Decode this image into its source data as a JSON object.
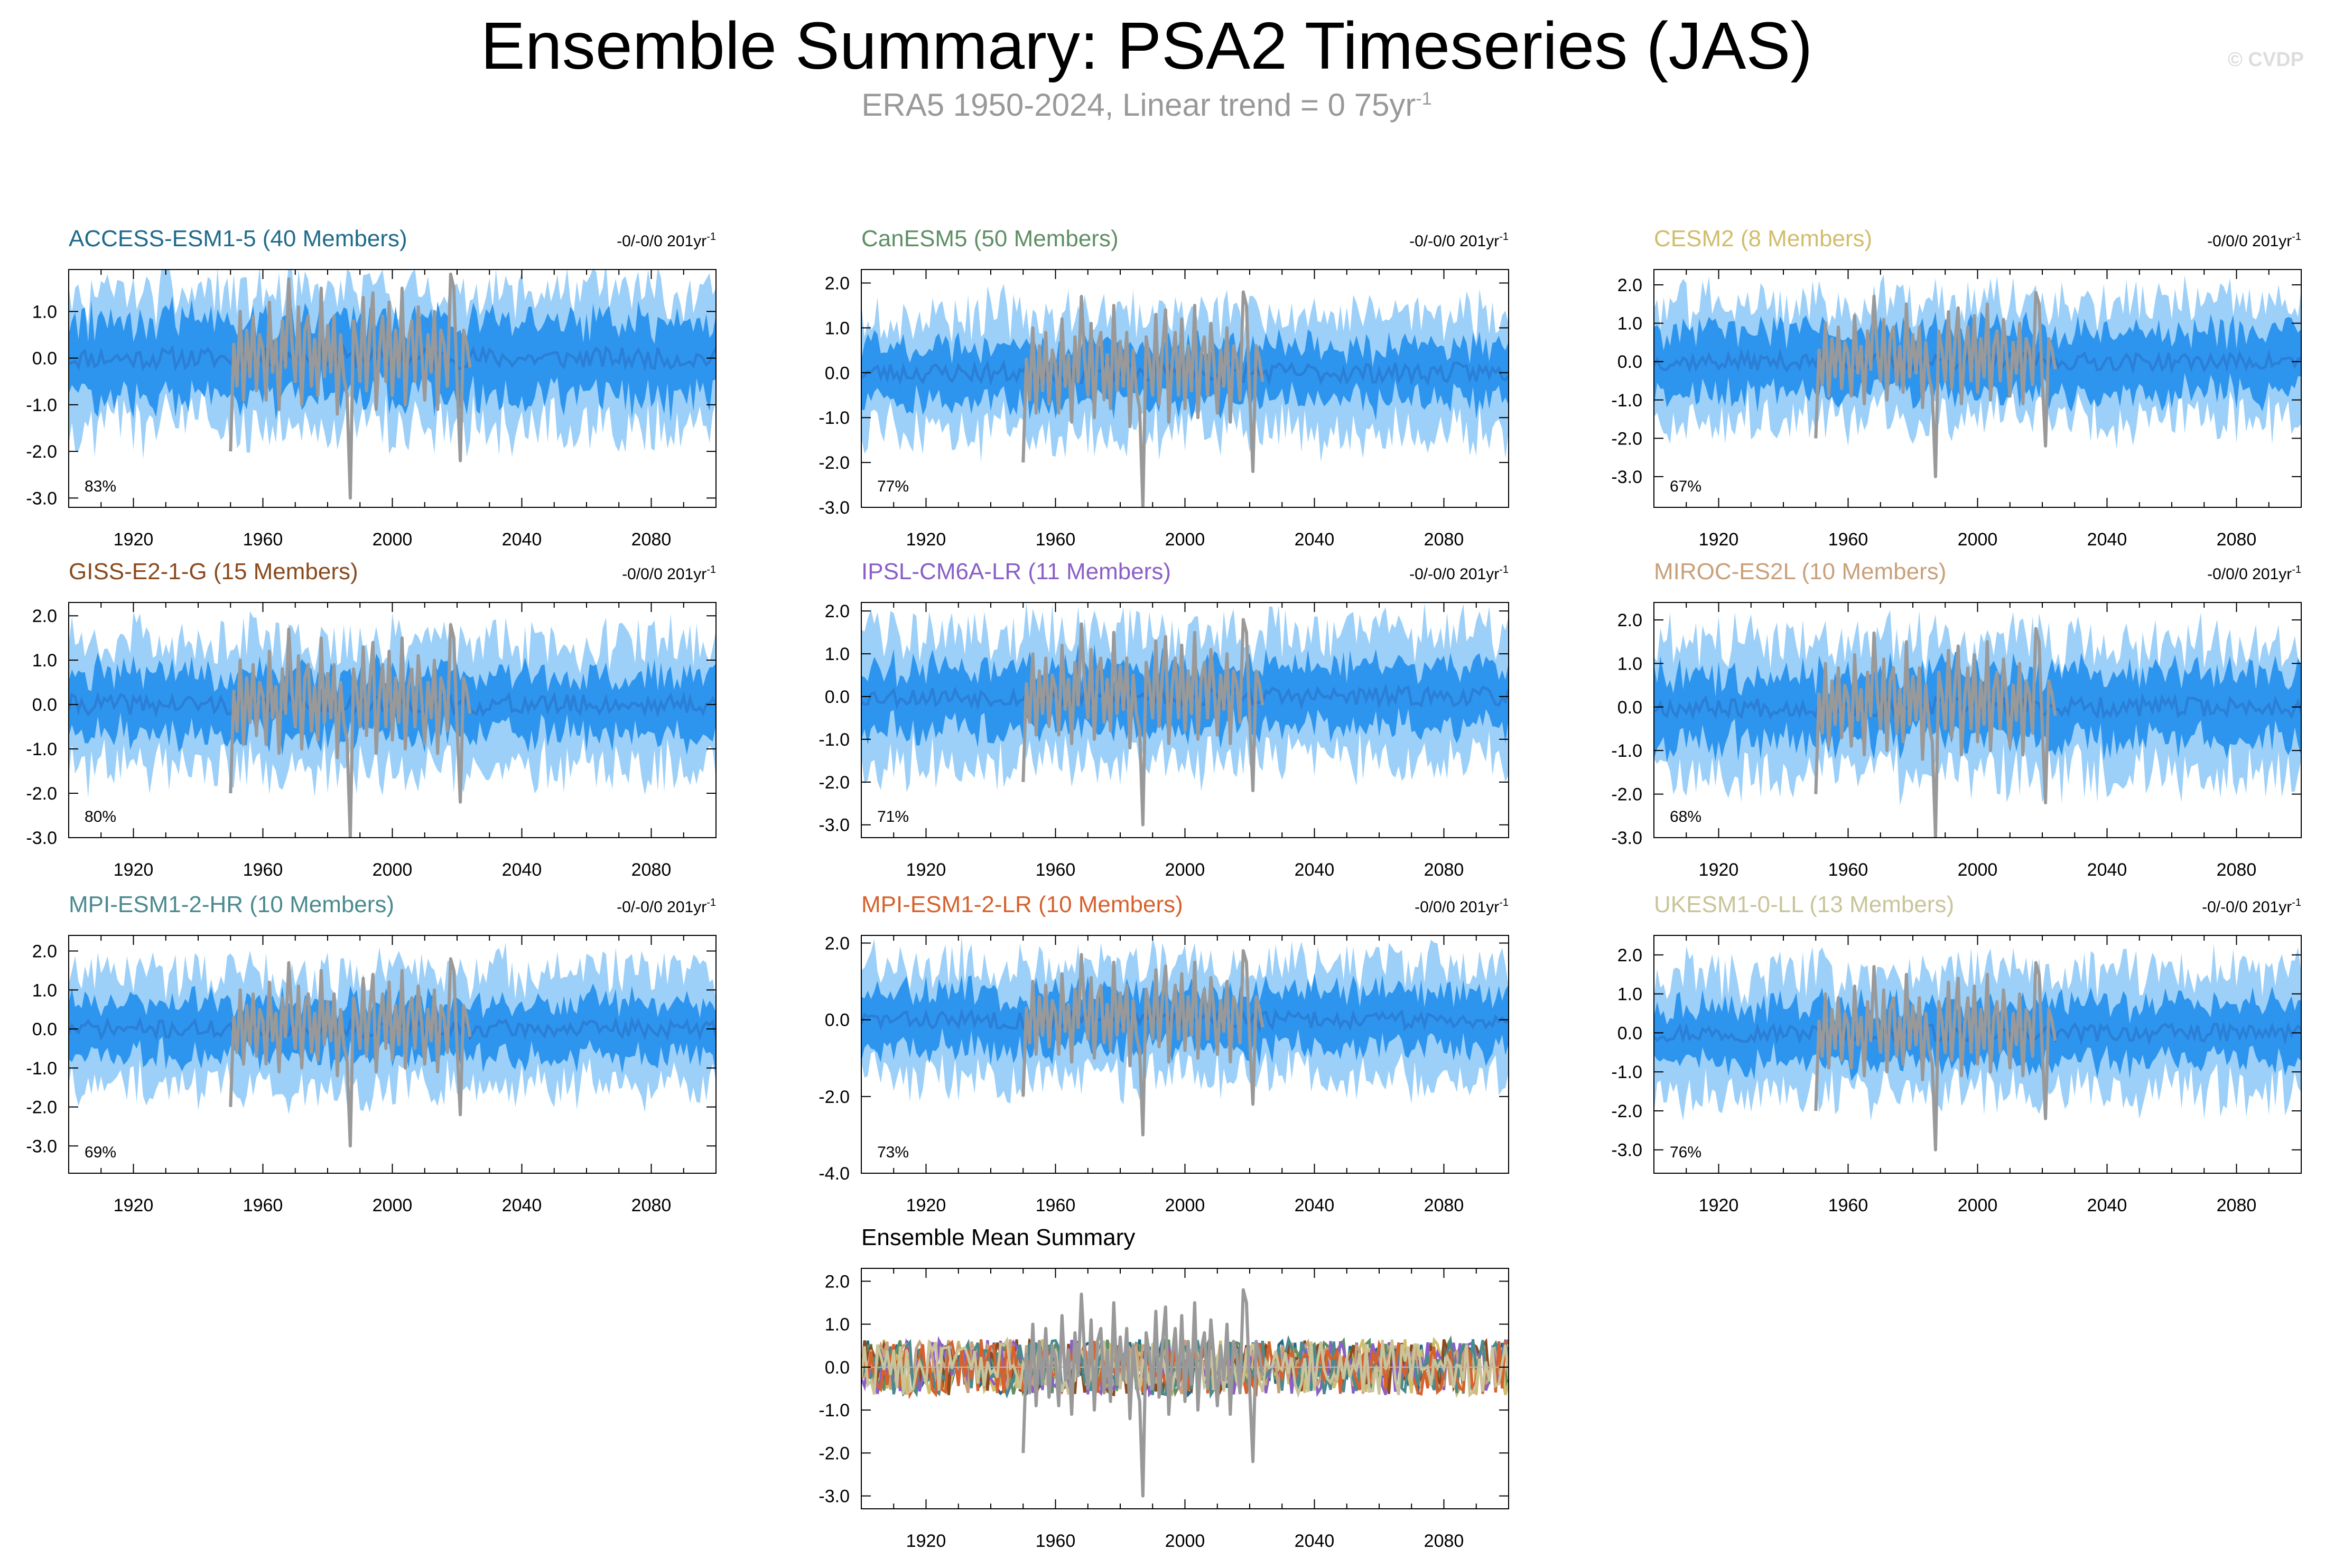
{
  "page": {
    "title": "Ensemble Summary: PSA2 Timeseries (JAS)",
    "subtitle_text": "ERA5 1950-2024, Linear trend = 0 75yr",
    "subtitle_sup": "-1",
    "credit": "© CVDP"
  },
  "colors": {
    "outer_band": "#9dd0f8",
    "inner_band": "#2e95ee",
    "mean_line": "#2b7fd6",
    "observation": "#999999"
  },
  "chart_data": [
    {
      "id": "access",
      "type": "area",
      "title": "ACCESS-ESM1-5 (40 Members)",
      "title_color": "#1f6b8c",
      "trend": "-0/-0/0 201yr",
      "trend_sup": "-1",
      "percent": "83%",
      "ylim": [
        -3.2,
        1.9
      ],
      "yticks": [
        1.0,
        0.0,
        -1.0,
        -2.0,
        -3.0
      ],
      "ytick_labels": [
        "1.0",
        "0.0",
        "-1.0",
        "-2.0",
        "-3.0"
      ],
      "xlim": [
        1900,
        2100
      ],
      "xticks": [
        1920,
        1960,
        2000,
        2040,
        2080
      ],
      "xtick_labels": [
        "1920",
        "1960",
        "2000",
        "2040",
        "2080"
      ],
      "inner_band": 1.0,
      "outer_band": 1.45,
      "seed": 11
    },
    {
      "id": "canesm",
      "type": "area",
      "title": "CanESM5 (50 Members)",
      "title_color": "#5f8f64",
      "trend": "-0/-0/0 201yr",
      "trend_sup": "-1",
      "percent": "77%",
      "ylim": [
        -3.0,
        2.3
      ],
      "yticks": [
        2.0,
        1.0,
        0.0,
        -1.0,
        -2.0,
        -3.0
      ],
      "ytick_labels": [
        "2.0",
        "1.0",
        "0.0",
        "-1.0",
        "-2.0",
        "-3.0"
      ],
      "xlim": [
        1900,
        2100
      ],
      "xticks": [
        1920,
        1960,
        2000,
        2040,
        2080
      ],
      "xtick_labels": [
        "1920",
        "1960",
        "2000",
        "2040",
        "2080"
      ],
      "inner_band": 0.75,
      "outer_band": 1.35,
      "seed": 23
    },
    {
      "id": "cesm",
      "type": "area",
      "title": "CESM2 (8 Members)",
      "title_color": "#d1bd6c",
      "trend": "-0/0/0 201yr",
      "trend_sup": "-1",
      "percent": "67%",
      "ylim": [
        -3.8,
        2.4
      ],
      "yticks": [
        2.0,
        1.0,
        0.0,
        -1.0,
        -2.0,
        -3.0
      ],
      "ytick_labels": [
        "2.0",
        "1.0",
        "0.0",
        "-1.0",
        "-2.0",
        "-3.0"
      ],
      "xlim": [
        1900,
        2100
      ],
      "xticks": [
        1920,
        1960,
        2000,
        2040,
        2080
      ],
      "xtick_labels": [
        "1920",
        "1960",
        "2000",
        "2040",
        "2080"
      ],
      "inner_band": 1.0,
      "outer_band": 1.55,
      "seed": 37
    },
    {
      "id": "giss",
      "type": "area",
      "title": "GISS-E2-1-G (15 Members)",
      "title_color": "#8a4a1e",
      "trend": "-0/0/0 201yr",
      "trend_sup": "-1",
      "percent": "80%",
      "ylim": [
        -3.0,
        2.3
      ],
      "yticks": [
        2.0,
        1.0,
        0.0,
        -1.0,
        -2.0,
        -3.0
      ],
      "ytick_labels": [
        "2.0",
        "1.0",
        "0.0",
        "-1.0",
        "-2.0",
        "-3.0"
      ],
      "xlim": [
        1900,
        2100
      ],
      "xticks": [
        1920,
        1960,
        2000,
        2040,
        2080
      ],
      "xtick_labels": [
        "1920",
        "1960",
        "2000",
        "2040",
        "2080"
      ],
      "inner_band": 0.85,
      "outer_band": 1.45,
      "seed": 41
    },
    {
      "id": "ipsl",
      "type": "area",
      "title": "IPSL-CM6A-LR (11 Members)",
      "title_color": "#8a5fc7",
      "trend": "-0/-0/0 201yr",
      "trend_sup": "-1",
      "percent": "71%",
      "ylim": [
        -3.3,
        2.2
      ],
      "yticks": [
        2.0,
        1.0,
        0.0,
        -1.0,
        -2.0,
        -3.0
      ],
      "ytick_labels": [
        "2.0",
        "1.0",
        "0.0",
        "-1.0",
        "-2.0",
        "-3.0"
      ],
      "xlim": [
        1900,
        2100
      ],
      "xticks": [
        1920,
        1960,
        2000,
        2040,
        2080
      ],
      "xtick_labels": [
        "1920",
        "1960",
        "2000",
        "2040",
        "2080"
      ],
      "inner_band": 0.9,
      "outer_band": 1.55,
      "seed": 53
    },
    {
      "id": "miroc",
      "type": "area",
      "title": "MIROC-ES2L (10 Members)",
      "title_color": "#c9a07a",
      "trend": "-0/0/0 201yr",
      "trend_sup": "-1",
      "percent": "68%",
      "ylim": [
        -3.0,
        2.4
      ],
      "yticks": [
        2.0,
        1.0,
        0.0,
        -1.0,
        -2.0,
        -3.0
      ],
      "ytick_labels": [
        "2.0",
        "1.0",
        "0.0",
        "-1.0",
        "-2.0",
        "-3.0"
      ],
      "xlim": [
        1900,
        2100
      ],
      "xticks": [
        1920,
        1960,
        2000,
        2040,
        2080
      ],
      "xtick_labels": [
        "1920",
        "1960",
        "2000",
        "2040",
        "2080"
      ],
      "inner_band": 0.95,
      "outer_band": 1.55,
      "seed": 67
    },
    {
      "id": "mpihr",
      "type": "area",
      "title": "MPI-ESM1-2-HR (10 Members)",
      "title_color": "#4a8a8f",
      "trend": "-0/-0/0 201yr",
      "trend_sup": "-1",
      "percent": "69%",
      "ylim": [
        -3.7,
        2.4
      ],
      "yticks": [
        2.0,
        1.0,
        0.0,
        -1.0,
        -2.0,
        -3.0
      ],
      "ytick_labels": [
        "2.0",
        "1.0",
        "0.0",
        "-1.0",
        "-2.0",
        "-3.0"
      ],
      "xlim": [
        1900,
        2100
      ],
      "xticks": [
        1920,
        1960,
        2000,
        2040,
        2080
      ],
      "xtick_labels": [
        "1920",
        "1960",
        "2000",
        "2040",
        "2080"
      ],
      "inner_band": 0.85,
      "outer_band": 1.5,
      "seed": 71
    },
    {
      "id": "mpilr",
      "type": "area",
      "title": "MPI-ESM1-2-LR (10 Members)",
      "title_color": "#d6612d",
      "trend": "-0/0/0 201yr",
      "trend_sup": "-1",
      "percent": "73%",
      "ylim": [
        -4.0,
        2.2
      ],
      "yticks": [
        2.0,
        0.0,
        -2.0,
        -4.0
      ],
      "ytick_labels": [
        "2.0",
        "0.0",
        "-2.0",
        "-4.0"
      ],
      "xlim": [
        1900,
        2100
      ],
      "xticks": [
        1920,
        1960,
        2000,
        2040,
        2080
      ],
      "xtick_labels": [
        "1920",
        "1960",
        "2000",
        "2040",
        "2080"
      ],
      "inner_band": 0.9,
      "outer_band": 1.5,
      "seed": 83
    },
    {
      "id": "ukesm",
      "type": "area",
      "title": "UKESM1-0-LL (13 Members)",
      "title_color": "#c9c49a",
      "trend": "-0/-0/0 201yr",
      "trend_sup": "-1",
      "percent": "76%",
      "ylim": [
        -3.6,
        2.5
      ],
      "yticks": [
        2.0,
        1.0,
        0.0,
        -1.0,
        -2.0,
        -3.0
      ],
      "ytick_labels": [
        "2.0",
        "1.0",
        "0.0",
        "-1.0",
        "-2.0",
        "-3.0"
      ],
      "xlim": [
        1900,
        2100
      ],
      "xticks": [
        1920,
        1960,
        2000,
        2040,
        2080
      ],
      "xtick_labels": [
        "1920",
        "1960",
        "2000",
        "2040",
        "2080"
      ],
      "inner_band": 0.9,
      "outer_band": 1.55,
      "seed": 97
    },
    {
      "id": "ensmean",
      "type": "line",
      "title": "Ensemble Mean Summary",
      "title_color": "#000000",
      "trend": "",
      "trend_sup": "",
      "percent": "",
      "ylim": [
        -3.3,
        2.3
      ],
      "yticks": [
        2.0,
        1.0,
        0.0,
        -1.0,
        -2.0,
        -3.0
      ],
      "ytick_labels": [
        "2.0",
        "1.0",
        "0.0",
        "-1.0",
        "-2.0",
        "-3.0"
      ],
      "xlim": [
        1900,
        2100
      ],
      "xticks": [
        1920,
        1960,
        2000,
        2040,
        2080
      ],
      "xtick_labels": [
        "1920",
        "1960",
        "2000",
        "2040",
        "2080"
      ],
      "series_colors": [
        "#1f6b8c",
        "#5f8f64",
        "#d1bd6c",
        "#8a4a1e",
        "#8a5fc7",
        "#c9a07a",
        "#4a8a8f",
        "#d6612d",
        "#c9c49a"
      ],
      "seed": 101
    }
  ],
  "observation": {
    "years": [
      1950,
      1951,
      1952,
      1953,
      1954,
      1955,
      1956,
      1957,
      1958,
      1959,
      1960,
      1961,
      1962,
      1963,
      1964,
      1965,
      1966,
      1967,
      1968,
      1969,
      1970,
      1971,
      1972,
      1973,
      1974,
      1975,
      1976,
      1977,
      1978,
      1979,
      1980,
      1981,
      1982,
      1983,
      1984,
      1985,
      1986,
      1987,
      1988,
      1989,
      1990,
      1991,
      1992,
      1993,
      1994,
      1995,
      1996,
      1997,
      1998,
      1999,
      2000,
      2001,
      2002,
      2003,
      2004,
      2005,
      2006,
      2007,
      2008,
      2009,
      2010,
      2011,
      2012,
      2013,
      2014,
      2015,
      2016,
      2017,
      2018,
      2019,
      2020,
      2021,
      2022,
      2023,
      2024
    ],
    "values": [
      -2.0,
      0.3,
      -0.6,
      1.0,
      -0.9,
      0.6,
      -0.4,
      0.9,
      -0.7,
      0.5,
      0.2,
      -0.9,
      1.2,
      -0.3,
      0.4,
      -1.1,
      0.8,
      -0.2,
      1.7,
      0.3,
      -0.5,
      1.1,
      -1.0,
      0.6,
      0.9,
      -0.6,
      0.4,
      -0.8,
      1.5,
      -0.4,
      0.7,
      -0.3,
      0.9,
      -1.2,
      0.5,
      -0.4,
      -0.8,
      -3.0,
      0.8,
      0.3,
      -0.5,
      1.3,
      -0.7,
      0.5,
      1.4,
      -1.1,
      0.2,
      0.9,
      -0.5,
      1.2,
      -0.8,
      0.6,
      -0.4,
      1.5,
      -1.0,
      0.4,
      0.8,
      -0.5,
      1.1,
      0.2,
      -0.9,
      0.5,
      -0.3,
      1.0,
      -1.1,
      0.6,
      0.3,
      -0.6,
      1.8,
      1.5,
      -0.5,
      -2.2,
      0.6,
      0.3,
      -0.2
    ]
  }
}
